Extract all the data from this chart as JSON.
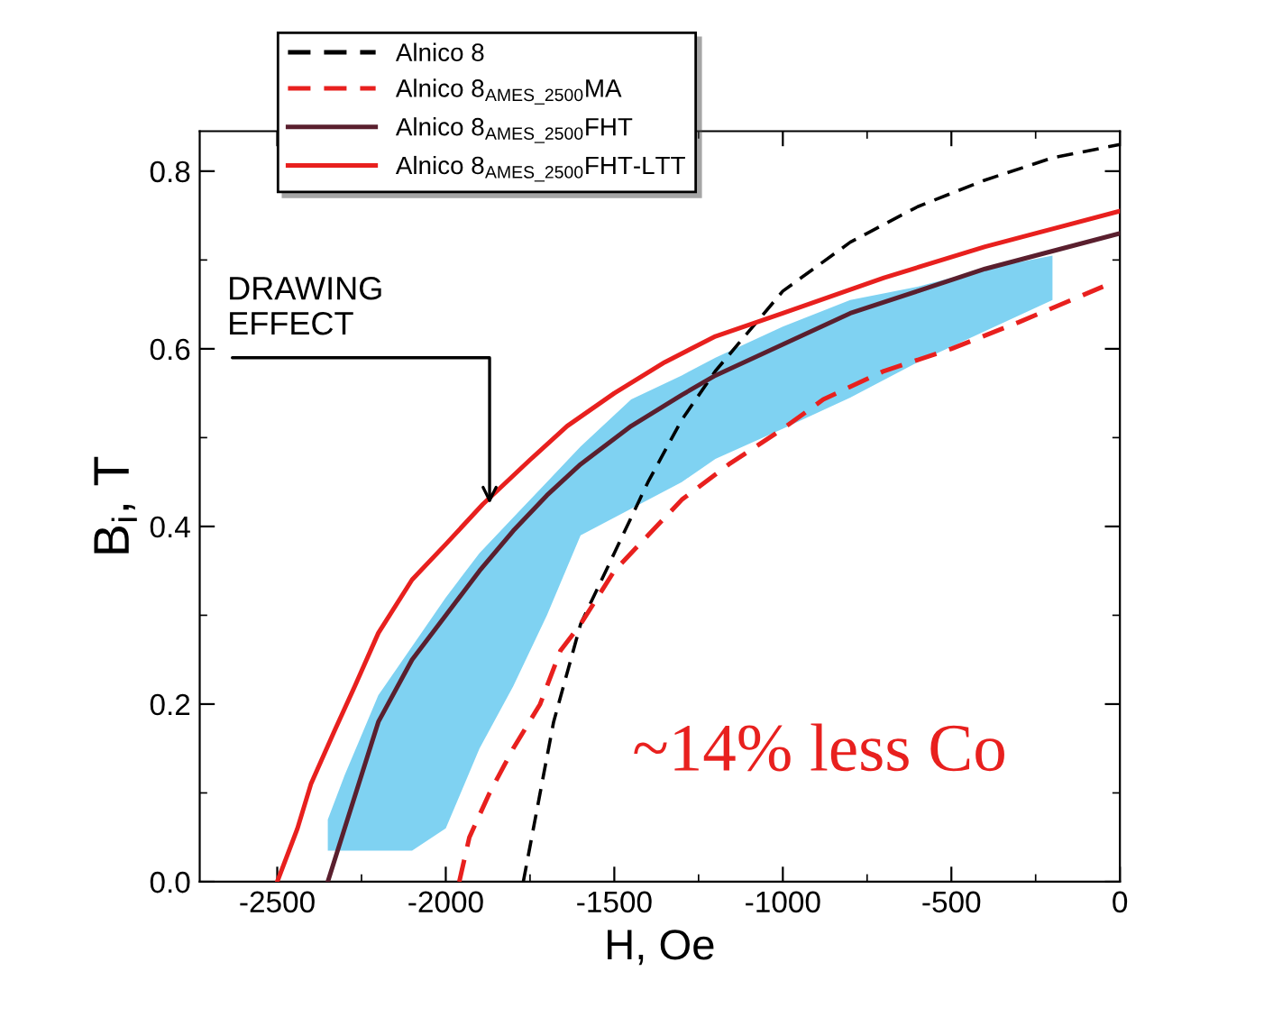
{
  "chart_data": {
    "type": "line",
    "xlabel": "H, Oe",
    "ylabel": "B$_{i}$, T",
    "xlim": [
      -2730,
      0
    ],
    "ylim": [
      0,
      0.845
    ],
    "xticks": [
      -2500,
      -2000,
      -1500,
      -1000,
      -500,
      0
    ],
    "yticks": [
      {
        "value": 0,
        "label": "0.0"
      },
      {
        "value": 0.2,
        "label": "0.2"
      },
      {
        "value": 0.4,
        "label": "0.4"
      },
      {
        "value": 0.6,
        "label": "0.6"
      },
      {
        "value": 0.8,
        "label": "0.8"
      }
    ],
    "legend": "top left",
    "grid": false,
    "series": [
      {
        "name": "Alnico 8",
        "color": "#000000",
        "line_style": "dashed",
        "x": [
          -1770,
          -1720,
          -1680,
          -1600,
          -1500,
          -1400,
          -1300,
          -1200,
          -1100,
          -1000,
          -800,
          -600,
          -400,
          -200,
          0
        ],
        "values": [
          0,
          0.1,
          0.18,
          0.29,
          0.37,
          0.45,
          0.52,
          0.575,
          0.62,
          0.665,
          0.72,
          0.76,
          0.79,
          0.815,
          0.83
        ]
      },
      {
        "name": "Alnico 8$_{AMES_2500}$MA",
        "color": "#e8201e",
        "line_style": "dashed",
        "x": [
          -1960,
          -1930,
          -1870,
          -1800,
          -1720,
          -1660,
          -1600,
          -1500,
          -1400,
          -1300,
          -1160,
          -1000,
          -880,
          -700,
          -500,
          -300,
          -50
        ],
        "values": [
          0,
          0.05,
          0.1,
          0.15,
          0.2,
          0.26,
          0.29,
          0.35,
          0.39,
          0.43,
          0.47,
          0.51,
          0.543,
          0.575,
          0.6,
          0.63,
          0.67
        ]
      },
      {
        "name": "Alnico 8$_{AMES_2500}$FHT",
        "color": "#5a1f2e",
        "line_style": "solid",
        "x": [
          -2350,
          -2300,
          -2250,
          -2200,
          -2100,
          -2000,
          -1900,
          -1800,
          -1700,
          -1600,
          -1450,
          -1300,
          -1200,
          -1000,
          -800,
          -600,
          -400,
          -200,
          0
        ],
        "values": [
          0,
          0.06,
          0.12,
          0.18,
          0.25,
          0.3,
          0.35,
          0.395,
          0.435,
          0.47,
          0.513,
          0.548,
          0.57,
          0.605,
          0.64,
          0.665,
          0.69,
          0.71,
          0.73
        ],
        "lower": [
          0.035,
          0.035,
          0.035,
          0.035,
          0.035,
          0.06,
          0.15,
          0.22,
          0.3,
          0.39,
          0.42,
          0.45,
          0.476,
          0.51,
          0.545,
          0.585,
          0.62,
          0.655,
          null
        ],
        "upper": [
          0.07,
          0.12,
          0.165,
          0.21,
          0.265,
          0.32,
          0.37,
          0.41,
          0.45,
          0.49,
          0.543,
          0.57,
          0.59,
          0.625,
          0.655,
          0.67,
          0.69,
          0.705,
          null
        ]
      },
      {
        "name": "Alnico 8$_{AMES_2500}$FHT-LTT",
        "color": "#e8201e",
        "line_style": "solid",
        "x": [
          -2500,
          -2440,
          -2400,
          -2330,
          -2270,
          -2200,
          -2100,
          -2000,
          -1890,
          -1750,
          -1640,
          -1500,
          -1350,
          -1200,
          -1000,
          -700,
          -400,
          -200,
          0
        ],
        "values": [
          0,
          0.06,
          0.11,
          0.17,
          0.22,
          0.28,
          0.34,
          0.38,
          0.425,
          0.475,
          0.513,
          0.55,
          0.585,
          0.614,
          0.64,
          0.68,
          0.715,
          0.735,
          0.755
        ]
      }
    ],
    "annotations": [
      {
        "text": "DRAWING\nEFFECT",
        "x": -1870,
        "y": 0.42
      },
      "~14% less Co"
    ]
  }
}
